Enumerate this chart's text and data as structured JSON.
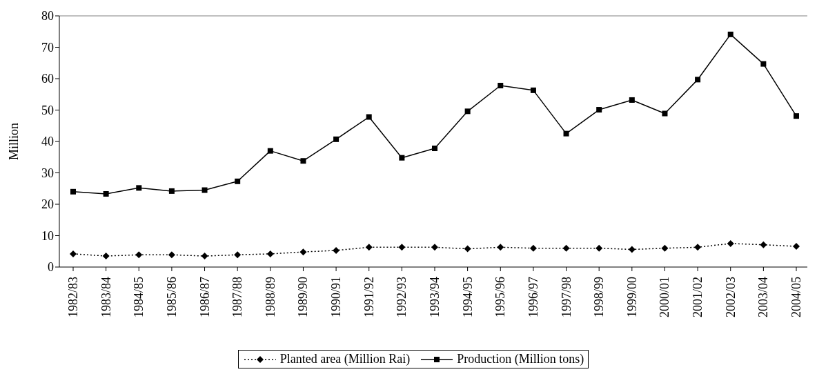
{
  "chart_data": {
    "type": "line",
    "ylabel": "Million",
    "categories": [
      "1982/83",
      "1983/84",
      "1984/85",
      "1985/86",
      "1986/87",
      "1987/88",
      "1988/89",
      "1989/90",
      "1990/91",
      "1991/92",
      "1992/93",
      "1993/94",
      "1994/95",
      "1995/96",
      "1996/97",
      "1997/98",
      "1998/99",
      "1999/00",
      "2000/01",
      "2001/02",
      "2002/03",
      "2003/04",
      "2004/05"
    ],
    "series": [
      {
        "name": "Planted area (Million Rai)",
        "color": "#000000",
        "marker": "diamond",
        "line_style": "dotted",
        "values": [
          4.2,
          3.5,
          3.9,
          3.9,
          3.5,
          3.9,
          4.2,
          4.8,
          5.3,
          6.3,
          6.3,
          6.3,
          5.8,
          6.3,
          6.0,
          6.0,
          6.0,
          5.6,
          6.0,
          6.3,
          7.5,
          7.1,
          6.6
        ]
      },
      {
        "name": "Production (Million tons)",
        "color": "#000000",
        "marker": "square",
        "line_style": "solid",
        "values": [
          24.0,
          23.3,
          25.2,
          24.2,
          24.5,
          27.3,
          37.0,
          33.8,
          40.7,
          47.8,
          34.8,
          37.8,
          49.6,
          57.8,
          56.3,
          42.5,
          50.1,
          53.2,
          48.9,
          59.7,
          74.1,
          64.7,
          48.1
        ]
      }
    ],
    "ylim": [
      0,
      80
    ],
    "yticks": [
      0,
      10,
      20,
      30,
      40,
      50,
      60,
      70,
      80
    ],
    "legend": "bottom"
  }
}
